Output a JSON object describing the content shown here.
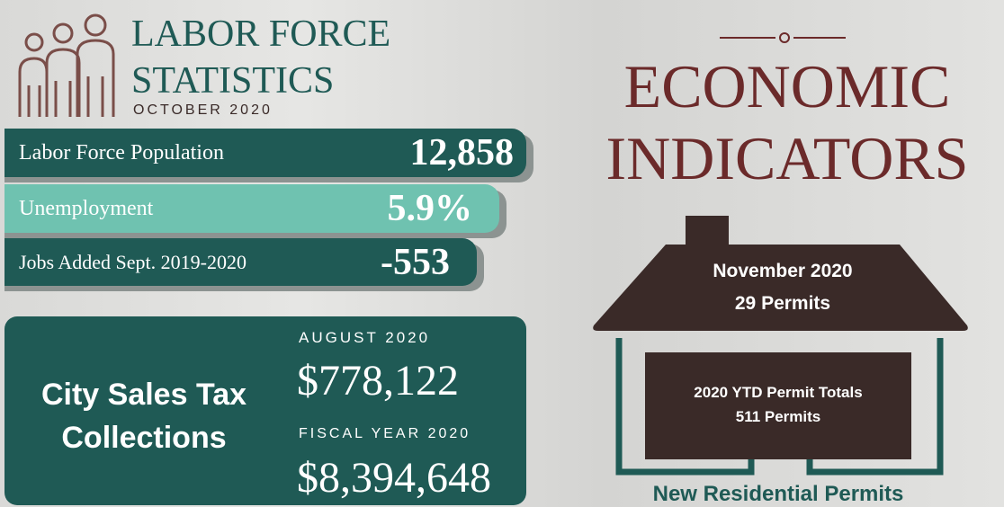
{
  "labor": {
    "title_line1": "LABOR FORCE",
    "title_line2": "STATISTICS",
    "subtitle": "OCTOBER 2020",
    "rows": [
      {
        "label": "Labor Force Population",
        "value": "12,858"
      },
      {
        "label": "Unemployment",
        "value": "5.9%"
      },
      {
        "label": "Jobs Added Sept. 2019-2020",
        "value": "-553"
      }
    ]
  },
  "sales_tax": {
    "title": "City Sales Tax Collections",
    "period1": "AUGUST 2020",
    "amount1": "$778,122",
    "period2": "FISCAL YEAR 2020",
    "amount2": "$8,394,648"
  },
  "economic": {
    "title_line1": "ECONOMIC",
    "title_line2": "INDICATORS"
  },
  "permits": {
    "month": "November 2020",
    "month_count": "29 Permits",
    "ytd_label": "2020 YTD Permit Totals",
    "ytd_count": "511 Permits",
    "caption": "New Residential Permits"
  }
}
